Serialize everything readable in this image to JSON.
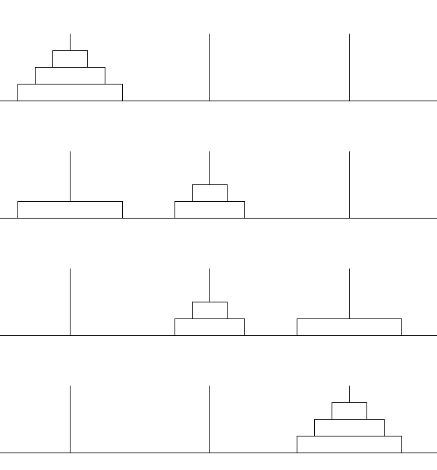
{
  "diagram": {
    "puzzle": "towers-of-hanoi",
    "peg_count": 3,
    "disk_count": 3,
    "colors": {
      "line": "#000000",
      "disk_fill": "#ffffff",
      "background": "#ffffff"
    },
    "states": [
      {
        "pegs": [
          [
            3,
            2,
            1
          ],
          [],
          []
        ]
      },
      {
        "pegs": [
          [
            3
          ],
          [
            2,
            1
          ],
          []
        ]
      },
      {
        "pegs": [
          [],
          [
            2,
            1
          ],
          [
            3
          ]
        ]
      },
      {
        "pegs": [
          [],
          [],
          [
            3,
            2,
            1
          ]
        ]
      }
    ]
  }
}
